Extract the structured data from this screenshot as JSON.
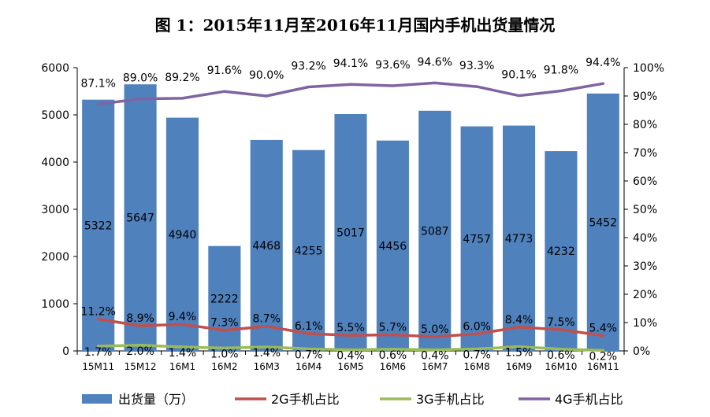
{
  "chart_data": {
    "type": "bar",
    "title": "图 1：2015年11月至2016年11月国内手机出货量情况",
    "categories": [
      "15M11",
      "15M12",
      "16M1",
      "16M2",
      "16M3",
      "16M4",
      "16M5",
      "16M6",
      "16M7",
      "16M8",
      "16M9",
      "16M10",
      "16M11"
    ],
    "bar_series": {
      "name": "出货量（万）",
      "color": "#4F81BD",
      "values": [
        5322,
        5647,
        4940,
        2222,
        4468,
        4255,
        5017,
        4456,
        5087,
        4757,
        4773,
        4232,
        5452
      ],
      "labels": [
        "5322",
        "5647",
        "4940",
        "2222",
        "4468",
        "4255",
        "5017",
        "4456",
        "5087",
        "4757",
        "4773",
        "4232",
        "5452"
      ]
    },
    "line_series": [
      {
        "name": "2G手机占比",
        "color": "#C0504D",
        "values": [
          11.2,
          8.9,
          9.4,
          7.3,
          8.7,
          6.1,
          5.5,
          5.7,
          5.0,
          6.0,
          8.4,
          7.5,
          5.4
        ],
        "labels": [
          "11.2%",
          "8.9%",
          "9.4%",
          "7.3%",
          "8.7%",
          "6.1%",
          "5.5%",
          "5.7%",
          "5.0%",
          "6.0%",
          "8.4%",
          "7.5%",
          "5.4%"
        ]
      },
      {
        "name": "3G手机占比",
        "color": "#9BBB59",
        "values": [
          1.7,
          2.0,
          1.4,
          1.0,
          1.4,
          0.7,
          0.4,
          0.6,
          0.4,
          0.7,
          1.5,
          0.6,
          0.2
        ],
        "labels": [
          "1.7%",
          "2.0%",
          "1.4%",
          "1.0%",
          "1.4%",
          "0.7%",
          "0.4%",
          "0.6%",
          "0.4%",
          "0.7%",
          "1.5%",
          "0.6%",
          "0.2%"
        ]
      },
      {
        "name": "4G手机占比",
        "color": "#8064A2",
        "values": [
          87.1,
          89.0,
          89.2,
          91.6,
          90.0,
          93.2,
          94.1,
          93.6,
          94.6,
          93.3,
          90.1,
          91.8,
          94.4
        ],
        "labels": [
          "87.1%",
          "89.0%",
          "89.2%",
          "91.6%",
          "90.0%",
          "93.2%",
          "94.1%",
          "93.6%",
          "94.6%",
          "93.3%",
          "90.1%",
          "91.8%",
          "94.4%"
        ]
      }
    ],
    "y_left": {
      "min": 0,
      "max": 6000,
      "ticks": [
        "0",
        "1000",
        "2000",
        "3000",
        "4000",
        "5000",
        "6000"
      ]
    },
    "y_right": {
      "min": 0,
      "max": 100,
      "ticks": [
        "0%",
        "10%",
        "20%",
        "30%",
        "40%",
        "50%",
        "60%",
        "70%",
        "80%",
        "90%",
        "100%"
      ]
    },
    "grid": false,
    "legend_position": "bottom"
  }
}
